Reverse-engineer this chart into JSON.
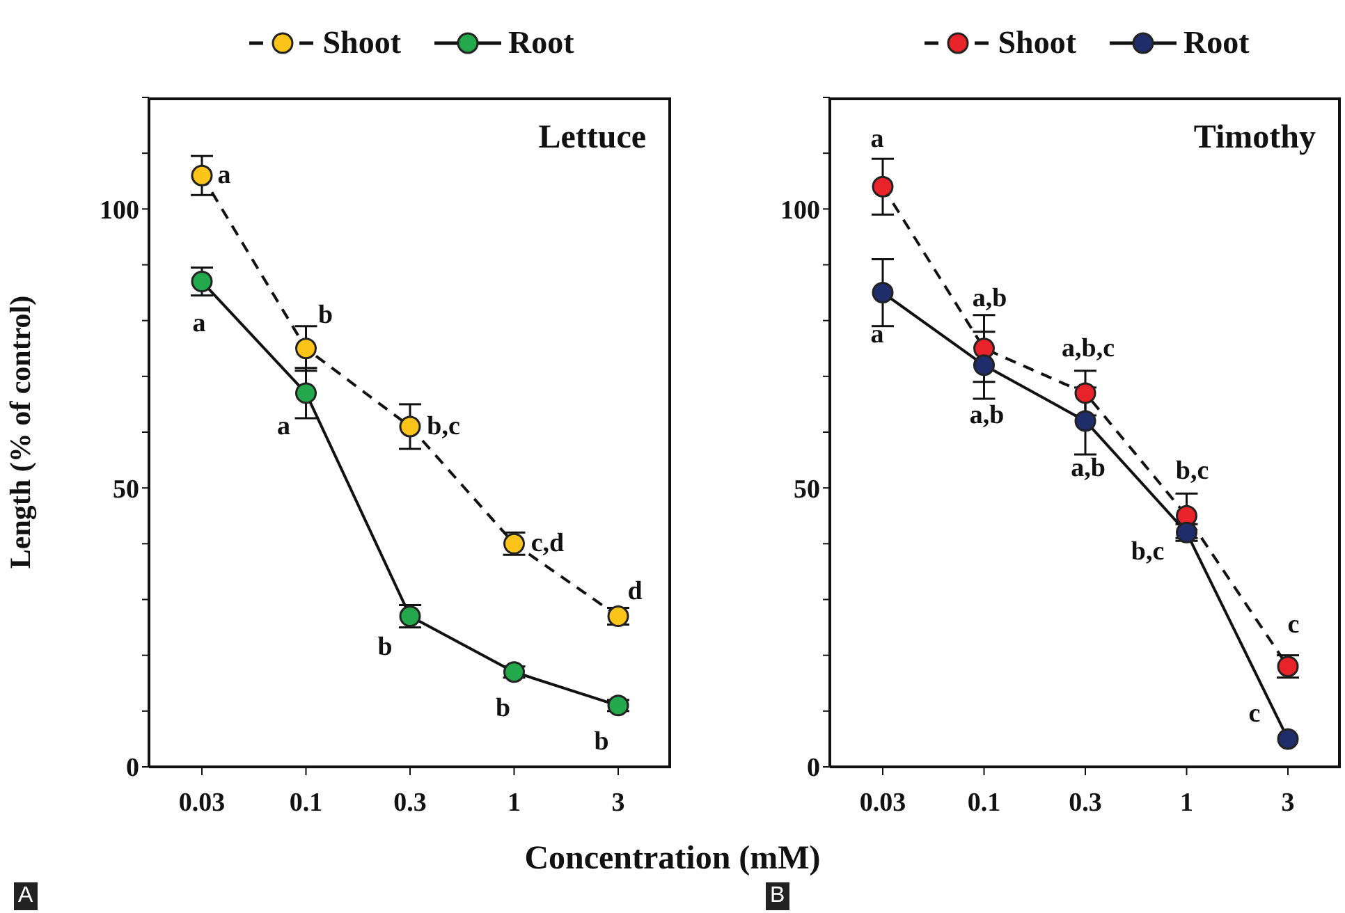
{
  "chart_data": [
    {
      "type": "line",
      "title": "Lettuce",
      "xlabel": "Concentration (mM)",
      "ylabel": "Length (% of control)",
      "categories": [
        "0.03",
        "0.1",
        "0.3",
        "1",
        "3"
      ],
      "series": [
        {
          "name": "Shoot",
          "color": "#fcc419",
          "line_style": "dashed",
          "values": [
            106,
            75,
            61,
            40,
            27
          ],
          "errors": [
            3.5,
            4,
            4,
            2,
            1.5
          ]
        },
        {
          "name": "Root",
          "color": "#23a84c",
          "line_style": "solid",
          "values": [
            87,
            67,
            27,
            17,
            11
          ],
          "errors": [
            2.5,
            4.5,
            2,
            1,
            1
          ]
        }
      ],
      "ylim": [
        0,
        120
      ],
      "yticks": [
        0,
        {
          "value": 10,
          "label": null
        },
        {
          "value": 20,
          "label": null
        },
        {
          "value": 30,
          "label": null
        },
        {
          "value": 40,
          "label": null
        },
        50,
        {
          "value": 60,
          "label": null
        },
        {
          "value": 70,
          "label": null
        },
        {
          "value": 80,
          "label": null
        },
        {
          "value": 90,
          "label": null
        },
        100,
        {
          "value": 110,
          "label": null
        },
        {
          "value": 120,
          "label": null
        }
      ],
      "marker": "circle",
      "legend": "top",
      "grid": false,
      "annotations": [
        {
          "text": "a",
          "x": "0.03",
          "y": 106
        },
        {
          "text": "b",
          "x": "0.1",
          "y": 75
        },
        {
          "text": "b,c",
          "x": "0.3",
          "y": 61
        },
        {
          "text": "c,d",
          "x": "1",
          "y": 40
        },
        {
          "text": "d",
          "x": "3",
          "y": 27
        },
        {
          "text": "a",
          "x": "0.03",
          "y": 87
        },
        {
          "text": "a",
          "x": "0.1",
          "y": 67
        },
        {
          "text": "b",
          "x": "0.3",
          "y": 27
        },
        {
          "text": "b",
          "x": "1",
          "y": 17
        },
        {
          "text": "b",
          "x": "3",
          "y": 11
        },
        "A"
      ]
    },
    {
      "type": "line",
      "title": "Timothy",
      "categories": [
        "0.03",
        "0.1",
        "0.3",
        "1",
        "3"
      ],
      "series": [
        {
          "name": "Shoot",
          "color": "#e8232a",
          "line_style": "dashed",
          "values": [
            104,
            75,
            67,
            45,
            18
          ],
          "errors": [
            5,
            6,
            4,
            4,
            2
          ]
        },
        {
          "name": "Root",
          "color": "#1f2d6b",
          "line_style": "solid",
          "values": [
            85,
            72,
            62,
            42,
            5
          ],
          "errors": [
            6,
            6,
            6,
            1.5,
            null
          ]
        }
      ],
      "ylim": [
        0,
        120
      ],
      "yticks": [
        0,
        {
          "value": 10,
          "label": null
        },
        {
          "value": 20,
          "label": null
        },
        {
          "value": 30,
          "label": null
        },
        {
          "value": 40,
          "label": null
        },
        50,
        {
          "value": 60,
          "label": null
        },
        {
          "value": 70,
          "label": null
        },
        {
          "value": 80,
          "label": null
        },
        {
          "value": 90,
          "label": null
        },
        100,
        {
          "value": 110,
          "label": null
        },
        {
          "value": 120,
          "label": null
        }
      ],
      "marker": "circle",
      "legend": "top",
      "grid": false,
      "annotations": [
        {
          "text": "a",
          "x": "0.03",
          "y": 104
        },
        {
          "text": "a,b",
          "x": "0.1",
          "y": 75
        },
        {
          "text": "a,b,c",
          "x": "0.3",
          "y": 67
        },
        {
          "text": "b,c",
          "x": "1",
          "y": 45
        },
        {
          "text": "c",
          "x": "3",
          "y": 18
        },
        {
          "text": "a",
          "x": "0.03",
          "y": 85
        },
        {
          "text": "a,b",
          "x": "0.1",
          "y": 72
        },
        {
          "text": "a,b",
          "x": "0.3",
          "y": 62
        },
        {
          "text": "b,c",
          "x": "1",
          "y": 42
        },
        {
          "text": "c",
          "x": "3",
          "y": 5
        },
        "B"
      ]
    }
  ]
}
